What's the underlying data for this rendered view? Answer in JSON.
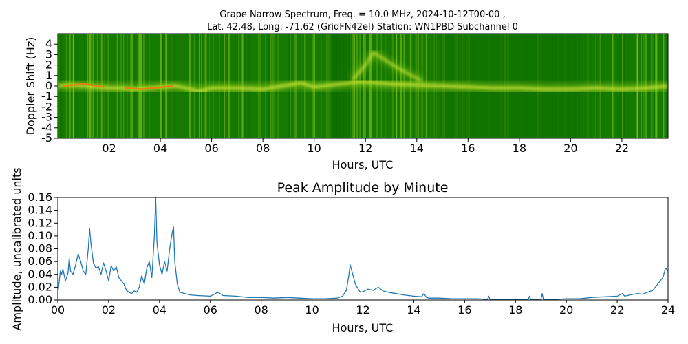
{
  "chart_data": [
    {
      "type": "heatmap",
      "title_line1": "Grape Narrow Spectrum, Freq. = 10.0 MHz, 2024-10-12T00-00 ,",
      "title_line2": "Lat.  42.48, Long. -71.62 (GridFN42el) Station: WN1PBD Subchannel 0",
      "xlabel": "Hours, UTC",
      "ylabel": "Doppler Shift (Hz)",
      "xlim": [
        0,
        23.8
      ],
      "ylim": [
        -5,
        5
      ],
      "x_ticks": [
        2,
        4,
        6,
        8,
        10,
        12,
        14,
        16,
        18,
        20,
        22
      ],
      "x_tick_labels": [
        "02",
        "04",
        "06",
        "08",
        "10",
        "12",
        "14",
        "16",
        "18",
        "20",
        "22"
      ],
      "y_ticks": [
        4,
        3,
        2,
        1,
        0,
        -1,
        -2,
        -3,
        -4,
        -5
      ],
      "y_tick_labels": [
        "4",
        "3",
        "2",
        "1",
        "0",
        "-1",
        "-2",
        "-3",
        "-4",
        "-5"
      ],
      "colors": {
        "background": "#157a00",
        "dark": "#0c6b00",
        "bright": "#8fcc1a",
        "trace": "#e8f040",
        "hot": "#f07a10"
      },
      "trace": {
        "x": [
          0,
          0.5,
          1,
          1.5,
          2,
          2.5,
          3,
          3.5,
          4,
          4.6,
          5,
          5.5,
          6,
          7,
          8,
          9,
          9.5,
          10,
          11.4,
          11.8,
          12.5,
          13,
          14,
          15,
          16,
          17,
          18,
          19,
          20,
          21,
          22,
          23,
          23.8
        ],
        "y": [
          0,
          0.1,
          0.0,
          -0.1,
          -0.2,
          -0.2,
          -0.3,
          -0.2,
          -0.1,
          0.0,
          -0.2,
          -0.5,
          -0.2,
          -0.2,
          -0.3,
          0.1,
          0.3,
          -0.1,
          0.3,
          0.4,
          0.3,
          0.2,
          0.1,
          0.0,
          -0.1,
          -0.2,
          -0.2,
          -0.3,
          -0.3,
          -0.2,
          -0.3,
          -0.2,
          0.0
        ]
      },
      "arc": {
        "x": [
          11.5,
          12.0,
          12.3,
          12.7,
          13.2,
          13.8,
          14.2
        ],
        "y": [
          0.6,
          2.0,
          3.2,
          2.6,
          1.8,
          1.0,
          0.5
        ]
      },
      "hot_segments": [
        {
          "x": [
            0.2,
            1.0,
            1.8
          ],
          "y": [
            0.0,
            0.2,
            -0.1
          ]
        },
        {
          "x": [
            2.6,
            3.3,
            4.5
          ],
          "y": [
            -0.2,
            -0.3,
            0.0
          ]
        }
      ]
    },
    {
      "type": "line",
      "title": "Peak Amplitude by Minute",
      "xlabel": "Hours, UTC",
      "ylabel": "Amplitude, uncalibrated units",
      "xlim": [
        0,
        24
      ],
      "ylim": [
        0,
        0.16
      ],
      "x_ticks": [
        0,
        2,
        4,
        6,
        8,
        10,
        12,
        14,
        16,
        18,
        20,
        22,
        24
      ],
      "x_tick_labels": [
        "00",
        "02",
        "04",
        "06",
        "08",
        "10",
        "12",
        "14",
        "16",
        "18",
        "20",
        "22",
        "24"
      ],
      "y_ticks": [
        0,
        0.02,
        0.04,
        0.06,
        0.08,
        0.1,
        0.12,
        0.14,
        0.16
      ],
      "y_tick_labels": [
        "0.00",
        "0.02",
        "0.04",
        "0.06",
        "0.08",
        "0.10",
        "0.12",
        "0.14",
        "0.16"
      ],
      "line_color": "#1f77b4",
      "x": [
        0,
        0.1,
        0.15,
        0.2,
        0.3,
        0.4,
        0.45,
        0.5,
        0.6,
        0.7,
        0.8,
        0.9,
        1.0,
        1.1,
        1.2,
        1.25,
        1.3,
        1.4,
        1.5,
        1.6,
        1.7,
        1.8,
        1.9,
        2.0,
        2.1,
        2.2,
        2.3,
        2.4,
        2.5,
        2.6,
        2.7,
        2.8,
        2.9,
        3.0,
        3.1,
        3.2,
        3.3,
        3.4,
        3.5,
        3.6,
        3.7,
        3.8,
        3.85,
        3.9,
        4.0,
        4.1,
        4.2,
        4.3,
        4.4,
        4.5,
        4.55,
        4.6,
        4.7,
        4.8,
        5.0,
        5.2,
        5.5,
        6.0,
        6.3,
        6.5,
        7.0,
        7.5,
        8.0,
        8.5,
        9.0,
        9.5,
        10.0,
        10.5,
        11.0,
        11.2,
        11.35,
        11.45,
        11.5,
        11.6,
        11.7,
        11.8,
        11.9,
        12.0,
        12.2,
        12.4,
        12.6,
        12.8,
        13.0,
        13.3,
        13.6,
        14.0,
        14.3,
        14.4,
        14.5,
        14.6,
        15.0,
        15.5,
        16.0,
        16.5,
        16.9,
        16.95,
        17.0,
        17.5,
        18.0,
        18.5,
        18.55,
        18.6,
        19.0,
        19.05,
        19.1,
        19.5,
        20.0,
        20.5,
        21.0,
        21.5,
        22.0,
        22.2,
        22.3,
        22.5,
        22.8,
        23.0,
        23.2,
        23.4,
        23.6,
        23.8,
        23.9,
        24.0
      ],
      "y": [
        0.01,
        0.045,
        0.04,
        0.048,
        0.03,
        0.042,
        0.065,
        0.045,
        0.04,
        0.055,
        0.072,
        0.06,
        0.045,
        0.04,
        0.08,
        0.112,
        0.09,
        0.058,
        0.05,
        0.052,
        0.04,
        0.058,
        0.045,
        0.03,
        0.054,
        0.045,
        0.052,
        0.035,
        0.03,
        0.025,
        0.015,
        0.012,
        0.01,
        0.014,
        0.012,
        0.02,
        0.038,
        0.025,
        0.05,
        0.06,
        0.035,
        0.1,
        0.16,
        0.09,
        0.055,
        0.04,
        0.06,
        0.045,
        0.08,
        0.105,
        0.114,
        0.06,
        0.025,
        0.012,
        0.01,
        0.008,
        0.007,
        0.006,
        0.012,
        0.007,
        0.006,
        0.004,
        0.004,
        0.003,
        0.004,
        0.003,
        0.002,
        0.002,
        0.003,
        0.006,
        0.015,
        0.04,
        0.055,
        0.04,
        0.025,
        0.018,
        0.012,
        0.013,
        0.017,
        0.015,
        0.02,
        0.014,
        0.012,
        0.01,
        0.008,
        0.006,
        0.005,
        0.01,
        0.004,
        0.003,
        0.003,
        0.002,
        0.002,
        0.002,
        0.001,
        0.006,
        0.001,
        0.001,
        0.001,
        0.001,
        0.006,
        0.001,
        0.001,
        0.01,
        0.001,
        0.001,
        0.002,
        0.002,
        0.004,
        0.005,
        0.006,
        0.01,
        0.006,
        0.008,
        0.01,
        0.009,
        0.012,
        0.015,
        0.025,
        0.035,
        0.05,
        0.045
      ]
    }
  ]
}
